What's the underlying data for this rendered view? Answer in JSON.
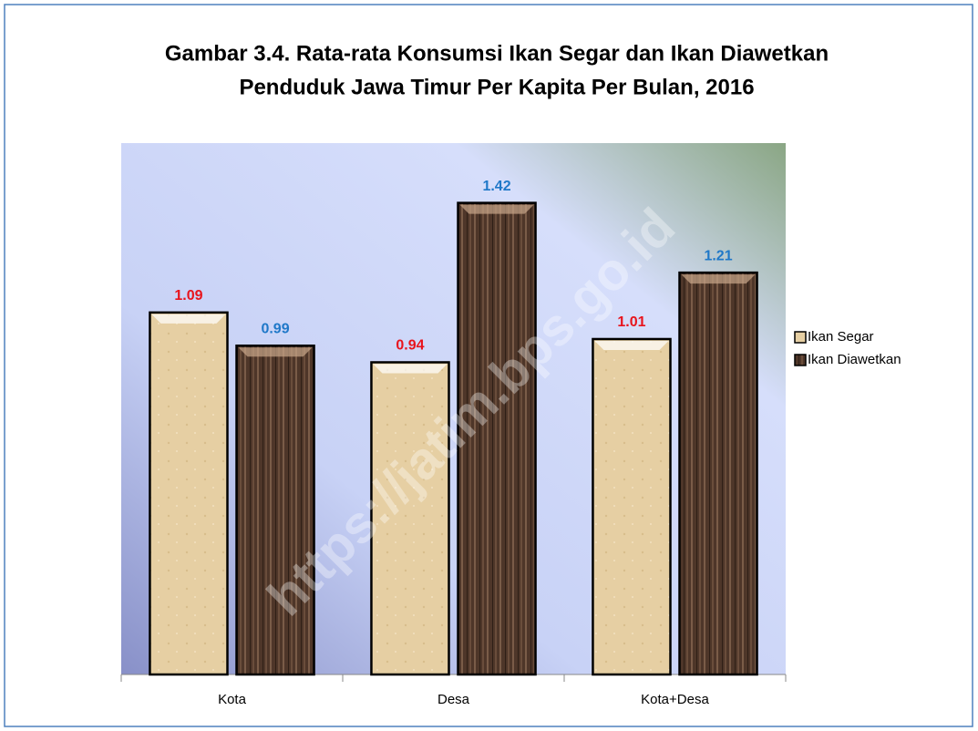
{
  "chart_data": {
    "type": "bar",
    "title": "Gambar 3.4. Rata-rata Konsumsi Ikan Segar dan Ikan Diawetkan",
    "subtitle": "Penduduk Jawa Timur Per Kapita Per Bulan, 2016",
    "watermark": "https://jatim.bps.go.id",
    "categories": [
      "Kota",
      "Desa",
      "Kota+Desa"
    ],
    "series": [
      {
        "name": "Ikan Segar",
        "color": "#e6cfa3",
        "label_color": "#e8141c",
        "values": [
          1.09,
          0.94,
          1.01
        ]
      },
      {
        "name": "Ikan Diawetkan",
        "color": "#4e3629",
        "label_color": "#1f78c8",
        "values": [
          0.99,
          1.42,
          1.21
        ]
      }
    ],
    "ylim": [
      0,
      1.6
    ],
    "legend": "right"
  }
}
